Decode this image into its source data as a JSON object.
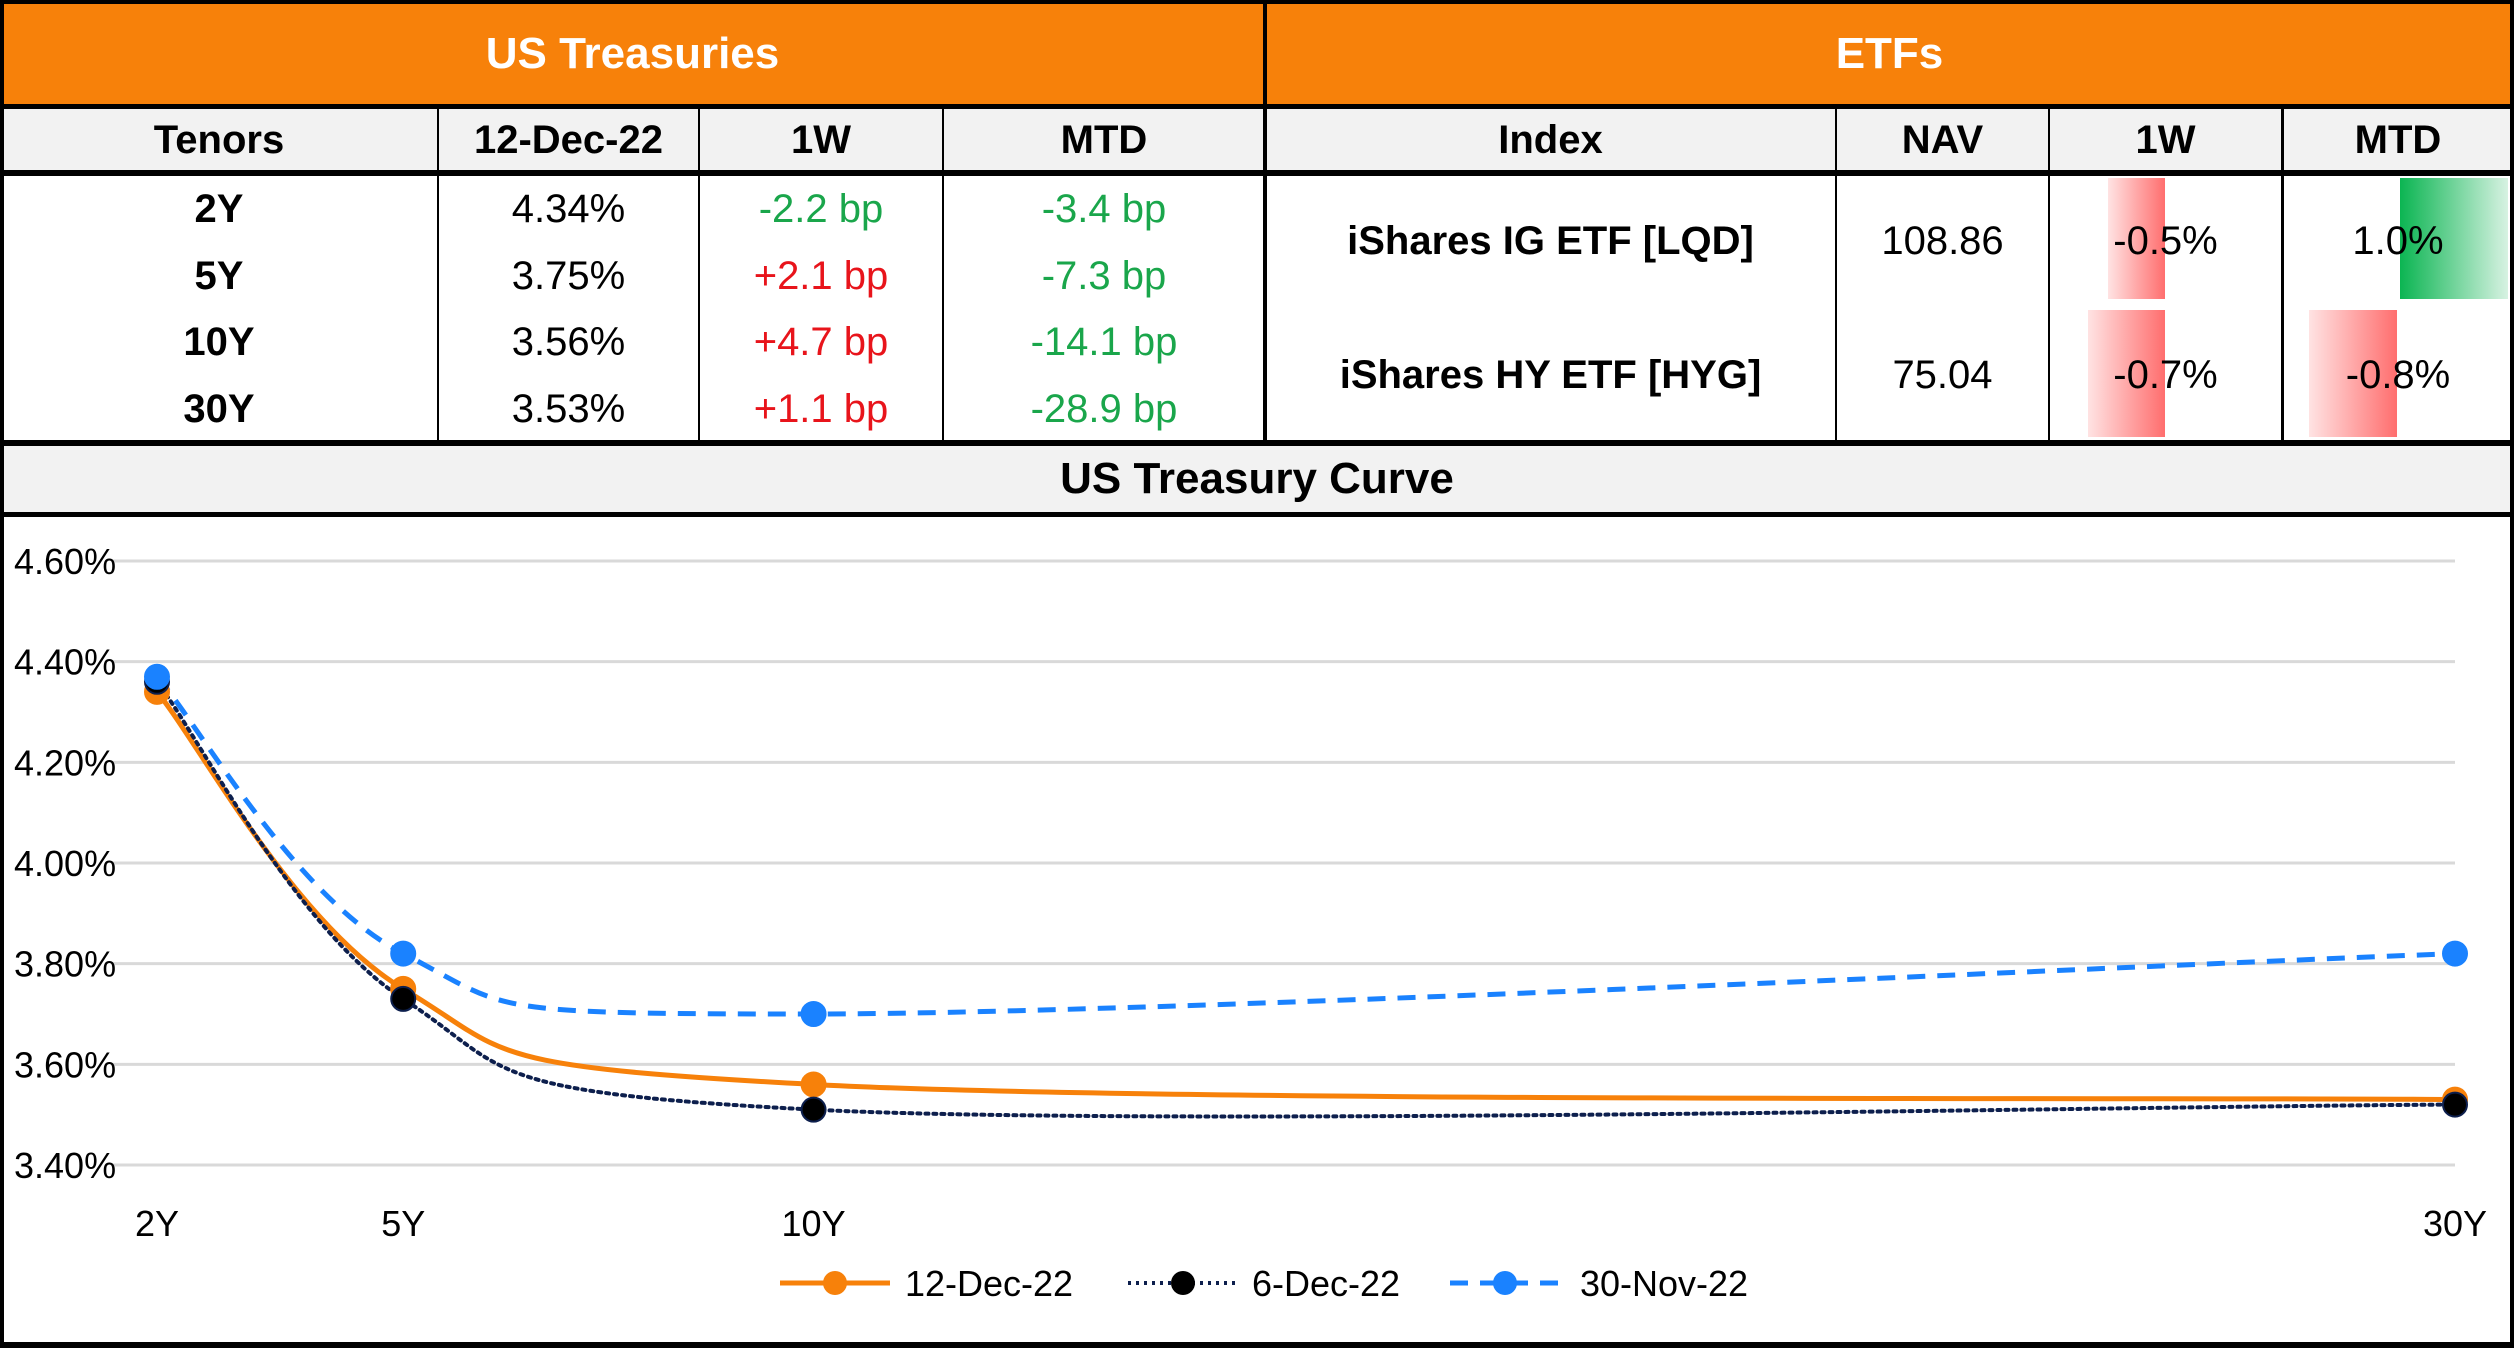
{
  "treasuries": {
    "title": "US Treasuries",
    "headers": [
      "Tenors",
      "12-Dec-22",
      "1W",
      "MTD"
    ],
    "rows": [
      {
        "tenor": "2Y",
        "yield": "4.34%",
        "w1": "-2.2 bp",
        "w1_dir": "down",
        "mtd": "-3.4 bp",
        "mtd_dir": "down"
      },
      {
        "tenor": "5Y",
        "yield": "3.75%",
        "w1": "+2.1 bp",
        "w1_dir": "up",
        "mtd": "-7.3 bp",
        "mtd_dir": "down"
      },
      {
        "tenor": "10Y",
        "yield": "3.56%",
        "w1": "+4.7 bp",
        "w1_dir": "up",
        "mtd": "-14.1 bp",
        "mtd_dir": "down"
      },
      {
        "tenor": "30Y",
        "yield": "3.53%",
        "w1": "+1.1 bp",
        "w1_dir": "up",
        "mtd": "-28.9 bp",
        "mtd_dir": "down"
      }
    ]
  },
  "etfs": {
    "title": "ETFs",
    "headers": [
      "Index",
      "NAV",
      "1W",
      "MTD"
    ],
    "rows": [
      {
        "index": "iShares IG ETF [LQD]",
        "nav": "108.86",
        "w1": "-0.5%",
        "w1_value": -0.5,
        "mtd": "1.0%",
        "mtd_value": 1.0
      },
      {
        "index": "iShares HY ETF [HYG]",
        "nav": "75.04",
        "w1": "-0.7%",
        "w1_value": -0.7,
        "mtd": "-0.8%",
        "mtd_value": -0.8
      }
    ]
  },
  "colors": {
    "band": "#f7810a",
    "header_bg": "#f2f2f2",
    "positive_text": "#1aa64b",
    "negative_text": "#e8141b",
    "bar_negative": "#ff6e6e",
    "bar_positive": "#0bb552"
  },
  "chart_data": {
    "type": "line",
    "title": "US Treasury Curve",
    "xlabel": "",
    "ylabel": "",
    "x": [
      "2Y",
      "5Y",
      "10Y",
      "30Y"
    ],
    "x_years": [
      2,
      5,
      10,
      30
    ],
    "ylim": [
      3.4,
      4.6
    ],
    "yticks": [
      "4.60%",
      "4.40%",
      "4.20%",
      "4.00%",
      "3.80%",
      "3.60%",
      "3.40%"
    ],
    "ytick_values": [
      4.6,
      4.4,
      4.2,
      4.0,
      3.8,
      3.6,
      3.4
    ],
    "grid": true,
    "smooth": true,
    "legend_position": "bottom",
    "series": [
      {
        "name": "12-Dec-22",
        "values": [
          4.34,
          3.75,
          3.56,
          3.53
        ],
        "color": "#f7810a",
        "style": "solid"
      },
      {
        "name": "6-Dec-22",
        "values": [
          4.36,
          3.73,
          3.51,
          3.52
        ],
        "color": "#0d1f4d",
        "style": "dotted"
      },
      {
        "name": "30-Nov-22",
        "values": [
          4.37,
          3.82,
          3.7,
          3.82
        ],
        "color": "#1a82ff",
        "style": "dashed"
      }
    ]
  }
}
